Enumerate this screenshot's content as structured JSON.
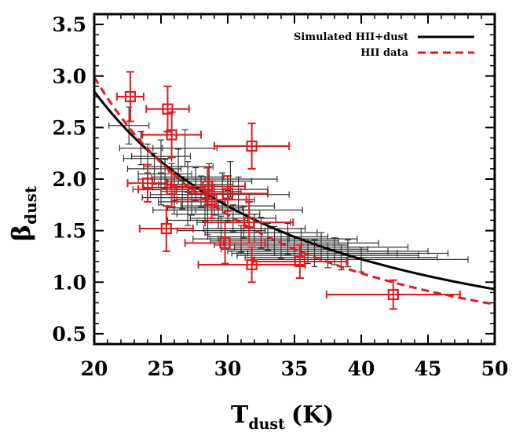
{
  "chart_data": {
    "type": "scatter",
    "xlabel_main": "T",
    "xlabel_sub": "dust",
    "xlabel_unit": "(K)",
    "ylabel_main": "β",
    "ylabel_sub": "dust",
    "xlim": [
      20,
      50
    ],
    "ylim": [
      0.4,
      3.6
    ],
    "xticks": [
      20,
      25,
      30,
      35,
      40,
      45,
      50
    ],
    "yticks": [
      0.5,
      1.0,
      1.5,
      2.0,
      2.5,
      3.0,
      3.5
    ],
    "xtick_labels": [
      "20",
      "25",
      "30",
      "35",
      "40",
      "45",
      "50"
    ],
    "ytick_labels": [
      "0.5",
      "1.0",
      "1.5",
      "2.0",
      "2.5",
      "3.0",
      "3.5"
    ],
    "legend": {
      "position": "top-right",
      "entries": [
        {
          "label": "Simulated HII+dust",
          "color": "#000000",
          "style": "solid"
        },
        {
          "label": "HII data",
          "color": "#e41a1c",
          "style": "dashed"
        }
      ]
    },
    "series": [
      {
        "name": "Simulated HII+dust",
        "color": "#333333",
        "points": [
          [
            22.6,
            2.52,
            1.5,
            0.18
          ],
          [
            23.5,
            2.3,
            1.6,
            0.16
          ],
          [
            24.0,
            2.2,
            1.8,
            0.14
          ],
          [
            24.5,
            2.1,
            2.0,
            0.15
          ],
          [
            25.0,
            2.22,
            2.2,
            0.16
          ],
          [
            25.3,
            2.05,
            2.0,
            0.14
          ],
          [
            25.8,
            2.0,
            2.5,
            0.15
          ],
          [
            26.0,
            1.92,
            2.3,
            0.13
          ],
          [
            26.3,
            2.12,
            2.6,
            0.17
          ],
          [
            26.6,
            1.85,
            2.4,
            0.14
          ],
          [
            27.0,
            2.02,
            2.7,
            0.15
          ],
          [
            27.3,
            1.78,
            2.5,
            0.13
          ],
          [
            27.6,
            1.95,
            2.8,
            0.16
          ],
          [
            28.0,
            1.88,
            3.0,
            0.15
          ],
          [
            28.3,
            1.72,
            2.8,
            0.13
          ],
          [
            28.6,
            1.98,
            3.2,
            0.17
          ],
          [
            29.0,
            1.8,
            3.0,
            0.15
          ],
          [
            29.3,
            1.66,
            3.1,
            0.14
          ],
          [
            29.6,
            1.9,
            3.4,
            0.16
          ],
          [
            30.0,
            1.74,
            3.5,
            0.15
          ],
          [
            30.4,
            1.62,
            3.2,
            0.13
          ],
          [
            30.8,
            1.85,
            3.8,
            0.17
          ],
          [
            31.2,
            1.58,
            3.5,
            0.15
          ],
          [
            31.6,
            1.7,
            4.0,
            0.16
          ],
          [
            32.0,
            1.52,
            3.8,
            0.14
          ],
          [
            32.5,
            1.48,
            4.2,
            0.15
          ],
          [
            33.0,
            1.44,
            4.5,
            0.13
          ],
          [
            33.5,
            1.4,
            4.8,
            0.14
          ],
          [
            34.0,
            1.36,
            5.0,
            0.13
          ],
          [
            34.5,
            1.42,
            5.2,
            0.15
          ],
          [
            35.0,
            1.32,
            5.5,
            0.12
          ],
          [
            35.5,
            1.38,
            5.8,
            0.14
          ],
          [
            36.0,
            1.3,
            6.0,
            0.12
          ],
          [
            36.5,
            1.28,
            6.2,
            0.13
          ],
          [
            37.0,
            1.34,
            6.5,
            0.14
          ],
          [
            37.5,
            1.26,
            6.8,
            0.12
          ],
          [
            38.0,
            1.3,
            7.0,
            0.13
          ],
          [
            38.5,
            1.24,
            7.2,
            0.12
          ],
          [
            39.0,
            1.28,
            7.5,
            0.13
          ],
          [
            40.0,
            1.22,
            8.0,
            0.12
          ],
          [
            28.5,
            1.6,
            3.0,
            0.14
          ],
          [
            27.0,
            1.7,
            2.6,
            0.15
          ],
          [
            26.0,
            1.82,
            2.4,
            0.16
          ],
          [
            25.0,
            1.9,
            2.1,
            0.15
          ],
          [
            29.5,
            1.5,
            3.3,
            0.14
          ],
          [
            31.0,
            1.42,
            3.6,
            0.13
          ],
          [
            30.2,
            2.0,
            3.5,
            0.17
          ],
          [
            26.8,
            2.3,
            2.4,
            0.18
          ]
        ]
      },
      {
        "name": "HII data",
        "color": "#e41a1c",
        "points": [
          [
            22.7,
            2.8,
            1.0,
            0.24
          ],
          [
            25.5,
            2.68,
            1.6,
            0.22
          ],
          [
            25.8,
            2.43,
            2.2,
            0.22
          ],
          [
            24.0,
            1.96,
            1.5,
            0.18
          ],
          [
            25.8,
            1.9,
            2.5,
            0.17
          ],
          [
            28.5,
            1.93,
            2.8,
            0.18
          ],
          [
            30.0,
            1.86,
            3.0,
            0.17
          ],
          [
            28.8,
            1.8,
            2.6,
            0.18
          ],
          [
            31.8,
            2.32,
            2.8,
            0.22
          ],
          [
            25.4,
            1.52,
            2.0,
            0.22
          ],
          [
            31.6,
            1.58,
            3.3,
            0.2
          ],
          [
            29.8,
            1.38,
            3.0,
            0.2
          ],
          [
            31.8,
            1.17,
            4.0,
            0.17
          ],
          [
            35.4,
            1.2,
            3.5,
            0.16
          ],
          [
            42.4,
            0.88,
            5.0,
            0.14
          ]
        ]
      }
    ],
    "fit_lines": [
      {
        "name": "Simulated HII+dust",
        "color": "#000000",
        "style": "solid",
        "model": "power",
        "a": 2.85,
        "x0": 20,
        "k": 1.22
      },
      {
        "name": "HII data",
        "color": "#e41a1c",
        "style": "dashed",
        "model": "power",
        "a": 2.99,
        "x0": 20,
        "k": 1.46
      }
    ]
  }
}
